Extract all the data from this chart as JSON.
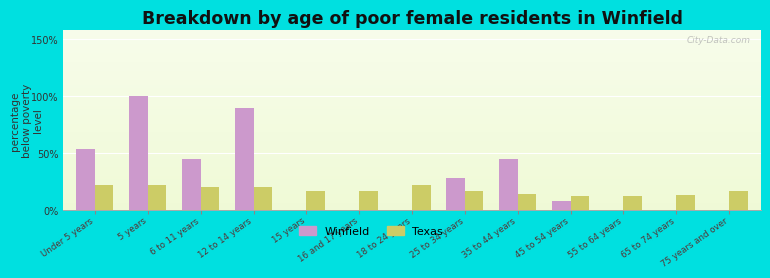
{
  "title": "Breakdown by age of poor female residents in Winfield",
  "ylabel": "percentage\nbelow poverty\nlevel",
  "categories": [
    "Under 5 years",
    "5 years",
    "6 to 11 years",
    "12 to 14 years",
    "15 years",
    "16 and 17 years",
    "18 to 24 years",
    "25 to 34 years",
    "35 to 44 years",
    "45 to 54 years",
    "55 to 64 years",
    "65 to 74 years",
    "75 years and over"
  ],
  "winfield_values": [
    54,
    100,
    45,
    90,
    0,
    0,
    0,
    28,
    45,
    8,
    0,
    0,
    0
  ],
  "texas_values": [
    22,
    22,
    20,
    20,
    17,
    17,
    22,
    17,
    14,
    12,
    12,
    13,
    17
  ],
  "winfield_color": "#cc99cc",
  "texas_color": "#cccc66",
  "outer_background": "#00e0e0",
  "yticks": [
    0,
    50,
    100,
    150
  ],
  "ytick_labels": [
    "0%",
    "50%",
    "100%",
    "150%"
  ],
  "ylim": [
    0,
    158
  ],
  "bar_width": 0.35,
  "title_fontsize": 12.5,
  "axis_label_fontsize": 7.5,
  "tick_fontsize": 7,
  "legend_labels": [
    "Winfield",
    "Texas"
  ],
  "watermark": "City-Data.com"
}
